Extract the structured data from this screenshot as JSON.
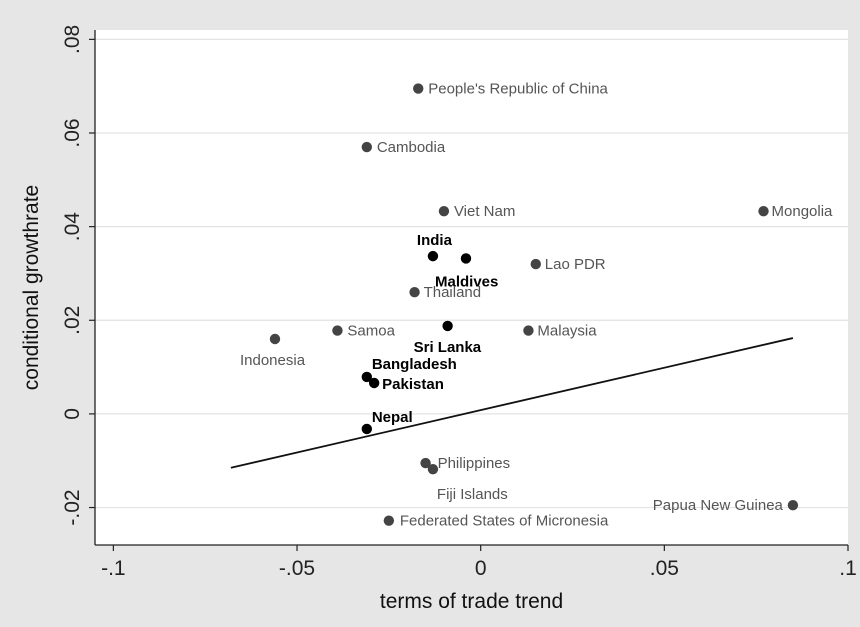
{
  "chart_data": {
    "type": "scatter",
    "xlabel": "terms of trade trend",
    "ylabel": "conditional growthrate",
    "xlim": [
      -0.105,
      0.1
    ],
    "ylim": [
      -0.028,
      0.082
    ],
    "x_ticks": [
      {
        "value": -0.1,
        "label": "-.1"
      },
      {
        "value": -0.05,
        "label": "-.05"
      },
      {
        "value": 0,
        "label": "0"
      },
      {
        "value": 0.05,
        "label": ".05"
      },
      {
        "value": 0.1,
        "label": ".1"
      }
    ],
    "y_ticks": [
      {
        "value": -0.02,
        "label": "-.02"
      },
      {
        "value": 0,
        "label": "0"
      },
      {
        "value": 0.02,
        "label": ".02"
      },
      {
        "value": 0.04,
        "label": ".04"
      },
      {
        "value": 0.06,
        "label": ".06"
      },
      {
        "value": 0.08,
        "label": ".08"
      }
    ],
    "grid": "horizontal",
    "colors": {
      "point": "#444444",
      "highlight_point": "#000000",
      "fit_line": "#111111",
      "plot_bg": "#ffffff",
      "page_bg": "#e6e6e6",
      "grid": "#e3e3e3"
    },
    "points": [
      {
        "label": "People's Republic of China",
        "x": -0.017,
        "y": 0.0695,
        "highlight": false
      },
      {
        "label": "Cambodia",
        "x": -0.031,
        "y": 0.057,
        "highlight": false
      },
      {
        "label": "Viet Nam",
        "x": -0.01,
        "y": 0.0433,
        "highlight": false
      },
      {
        "label": "Mongolia",
        "x": 0.077,
        "y": 0.0433,
        "highlight": false
      },
      {
        "label": "India",
        "x": -0.013,
        "y": 0.0337,
        "highlight": true
      },
      {
        "label": "Maldives",
        "x": -0.004,
        "y": 0.0332,
        "highlight": true
      },
      {
        "label": "Lao PDR",
        "x": 0.015,
        "y": 0.032,
        "highlight": false
      },
      {
        "label": "Thailand",
        "x": -0.018,
        "y": 0.026,
        "highlight": false
      },
      {
        "label": "Samoa",
        "x": -0.039,
        "y": 0.0178,
        "highlight": false
      },
      {
        "label": "Sri Lanka",
        "x": -0.009,
        "y": 0.0188,
        "highlight": true
      },
      {
        "label": "Malaysia",
        "x": 0.013,
        "y": 0.0178,
        "highlight": false
      },
      {
        "label": "Indonesia",
        "x": -0.056,
        "y": 0.016,
        "highlight": false
      },
      {
        "label": "Bangladesh",
        "x": -0.031,
        "y": 0.0079,
        "highlight": true
      },
      {
        "label": "Pakistan",
        "x": -0.029,
        "y": 0.0066,
        "highlight": true
      },
      {
        "label": "Nepal",
        "x": -0.031,
        "y": -0.0032,
        "highlight": true
      },
      {
        "label": "Philippines",
        "x": -0.015,
        "y": -0.0105,
        "highlight": false
      },
      {
        "label": "Fiji Islands",
        "x": -0.013,
        "y": -0.0118,
        "highlight": false
      },
      {
        "label": "Papua New Guinea",
        "x": 0.085,
        "y": -0.0195,
        "highlight": false
      },
      {
        "label": "Federated States of Micronesia",
        "x": -0.025,
        "y": -0.0228,
        "highlight": false
      }
    ],
    "fit_line": {
      "x": [
        -0.068,
        0.085
      ],
      "y": [
        -0.0115,
        0.0162
      ]
    }
  }
}
